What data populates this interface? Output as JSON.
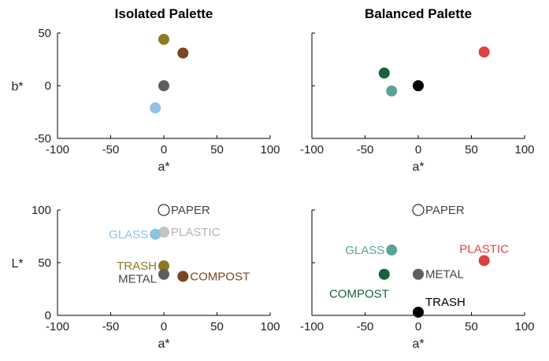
{
  "chart_data": [
    {
      "type": "scatter",
      "title": "Isolated Palette",
      "xlabel": "a*",
      "ylabel": "b*",
      "xlim": [
        -100,
        100
      ],
      "ylim": [
        -50,
        50
      ],
      "xticks": [
        -100,
        -50,
        0,
        50,
        100
      ],
      "yticks": [
        -50,
        0,
        50
      ],
      "grid": false,
      "points": [
        {
          "x": 0,
          "y": 44,
          "color": "#8c7a22"
        },
        {
          "x": 18,
          "y": 31,
          "color": "#7b4520"
        },
        {
          "x": 0,
          "y": 0,
          "color": "#5e5e5e"
        },
        {
          "x": -8,
          "y": -21,
          "color": "#8dc3e4"
        }
      ]
    },
    {
      "type": "scatter",
      "title": "Balanced Palette",
      "xlabel": "a*",
      "ylabel": "",
      "xlim": [
        -100,
        100
      ],
      "ylim": [
        -50,
        50
      ],
      "xticks": [
        -100,
        -50,
        0,
        50,
        100
      ],
      "yticks": [
        -50,
        0,
        50
      ],
      "show_ytick_labels": false,
      "grid": false,
      "points": [
        {
          "x": 62,
          "y": 32,
          "color": "#e03e45"
        },
        {
          "x": -32,
          "y": 12,
          "color": "#16623c"
        },
        {
          "x": 0,
          "y": 0,
          "color": "#000000"
        },
        {
          "x": -25,
          "y": -5,
          "color": "#5aa39a"
        }
      ]
    },
    {
      "type": "scatter",
      "title": "",
      "xlabel": "a*",
      "ylabel": "L*",
      "xlim": [
        -100,
        100
      ],
      "ylim": [
        0,
        100
      ],
      "xticks": [
        -100,
        -50,
        0,
        50,
        100
      ],
      "yticks": [
        0,
        50,
        100
      ],
      "grid": false,
      "points": [
        {
          "x": 0,
          "y": 100,
          "label": "PAPER",
          "color": "#ffffff",
          "stroke": "#000000",
          "label_color": "#444444",
          "anchor": "right"
        },
        {
          "x": 0,
          "y": 79,
          "label": "PLASTIC",
          "color": "#c3c3c3",
          "label_color": "#b3b3b3",
          "anchor": "right"
        },
        {
          "x": -8,
          "y": 77,
          "label": "GLASS",
          "color": "#8dc3e4",
          "label_color": "#8dc3e4",
          "anchor": "left"
        },
        {
          "x": 0,
          "y": 47,
          "label": "TRASH",
          "color": "#8c7a22",
          "label_color": "#8c7a22",
          "anchor": "left"
        },
        {
          "x": 0,
          "y": 39,
          "label": "METAL",
          "color": "#5e5e5e",
          "label_color": "#444444",
          "anchor": "left-below"
        },
        {
          "x": 18,
          "y": 37,
          "label": "COMPOST",
          "color": "#7b4520",
          "label_color": "#7b4520",
          "anchor": "right"
        }
      ]
    },
    {
      "type": "scatter",
      "title": "",
      "xlabel": "a*",
      "ylabel": "",
      "xlim": [
        -100,
        100
      ],
      "ylim": [
        0,
        100
      ],
      "xticks": [
        -100,
        -50,
        0,
        50,
        100
      ],
      "yticks": [
        0,
        50,
        100
      ],
      "show_ytick_labels": false,
      "grid": false,
      "points": [
        {
          "x": 0,
          "y": 100,
          "label": "PAPER",
          "color": "#ffffff",
          "stroke": "#000000",
          "label_color": "#444444",
          "anchor": "right"
        },
        {
          "x": -25,
          "y": 62,
          "label": "GLASS",
          "color": "#5aa39a",
          "label_color": "#5aa39a",
          "anchor": "left"
        },
        {
          "x": 62,
          "y": 52,
          "label": "PLASTIC",
          "color": "#e03e45",
          "label_color": "#e03e45",
          "anchor": "above"
        },
        {
          "x": 0,
          "y": 39,
          "label": "METAL",
          "color": "#5e5e5e",
          "label_color": "#444444",
          "anchor": "right"
        },
        {
          "x": -32,
          "y": 39,
          "label": "COMPOST",
          "color": "#16623c",
          "label_color": "#16623c",
          "anchor": "below-left"
        },
        {
          "x": 0,
          "y": 3,
          "label": "TRASH",
          "color": "#000000",
          "label_color": "#000000",
          "anchor": "above-right"
        }
      ]
    }
  ]
}
